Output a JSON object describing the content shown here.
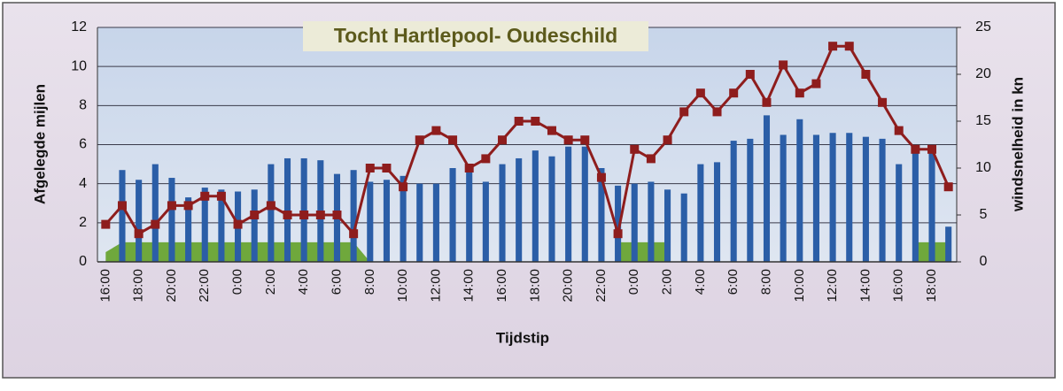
{
  "chart_data": {
    "type": "bar-line",
    "title": "Tocht  Hartlepool- Oudeschild",
    "x_label": "Tijdstip",
    "y_label": "Afgelegde mijlen",
    "y2_label": "windsnelheid in kn",
    "categories": [
      "16:00",
      null,
      "18:00",
      null,
      "20:00",
      null,
      "22:00",
      null,
      "0:00",
      null,
      "2:00",
      null,
      "4:00",
      null,
      "6:00",
      null,
      "8:00",
      null,
      "10:00",
      null,
      "12:00",
      null,
      "14:00",
      null,
      "16:00",
      null,
      "18:00",
      null,
      "20:00",
      null,
      "22:00",
      null,
      "0:00",
      null,
      "2:00",
      null,
      "4:00",
      null,
      "6:00",
      null,
      "8:00",
      null,
      "10:00",
      null,
      "12:00",
      null,
      "14:00",
      null,
      "16:00",
      null,
      "18:00",
      null
    ],
    "series": [
      {
        "type": "area",
        "color": "#6fa83c",
        "values": [
          0.5,
          1,
          1,
          1,
          1,
          1,
          1,
          1,
          1,
          1,
          1,
          1,
          1,
          1,
          1,
          1,
          0,
          null,
          null,
          null,
          null,
          null,
          null,
          null,
          null,
          null,
          null,
          null,
          null,
          null,
          null,
          1,
          1,
          1,
          1,
          null,
          null,
          null,
          null,
          null,
          null,
          null,
          null,
          null,
          null,
          null,
          null,
          null,
          null,
          1,
          1,
          1
        ]
      },
      {
        "type": "bar",
        "color": "#2b5ea7",
        "values": [
          null,
          4.7,
          4.2,
          5.0,
          4.3,
          3.3,
          3.8,
          3.7,
          3.6,
          3.7,
          5.0,
          5.3,
          5.3,
          5.2,
          4.5,
          4.7,
          4.1,
          4.2,
          4.4,
          4.0,
          4.0,
          4.8,
          5.0,
          4.1,
          5.0,
          5.3,
          5.7,
          5.4,
          5.9,
          5.9,
          4.8,
          3.9,
          4.0,
          4.1,
          3.7,
          3.5,
          5.0,
          5.1,
          6.2,
          6.3,
          7.5,
          6.5,
          7.3,
          6.5,
          6.6,
          6.6,
          6.4,
          6.3,
          5.0,
          5.8,
          5.7,
          1.8
        ]
      },
      {
        "type": "line",
        "axis": "y2",
        "color": "#8e1d1d",
        "values": [
          4,
          6,
          3,
          4,
          6,
          6,
          7,
          7,
          4,
          5,
          6,
          5,
          5,
          5,
          5,
          3,
          10,
          10,
          8,
          13,
          14,
          13,
          10,
          11,
          13,
          15,
          15,
          14,
          13,
          13,
          9,
          3,
          12,
          11,
          13,
          16,
          18,
          16,
          18,
          20,
          17,
          21,
          18,
          19,
          23,
          23,
          20,
          17,
          14,
          12,
          12,
          8
        ]
      }
    ],
    "ylim": [
      0,
      12
    ],
    "yticks": [
      0,
      2,
      4,
      6,
      8,
      10,
      12
    ],
    "y2lim": [
      0,
      25
    ],
    "y2ticks": [
      0,
      5,
      10,
      15,
      20,
      25
    ],
    "grid": true
  }
}
